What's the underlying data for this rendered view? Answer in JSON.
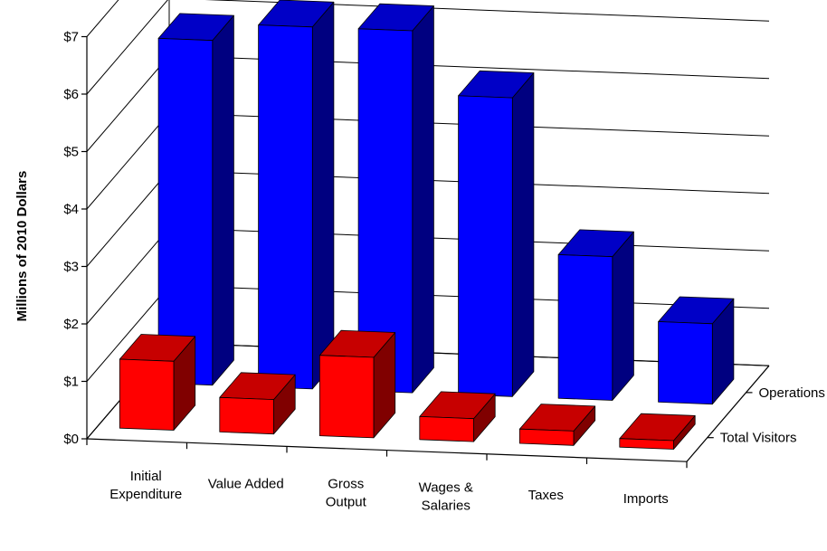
{
  "chart_data": {
    "type": "bar",
    "title": "",
    "ylabel": "Millions of 2010 Dollars",
    "xlabel": "",
    "ylim": [
      0,
      7
    ],
    "ytick_labels": [
      "$0",
      "$1",
      "$2",
      "$3",
      "$4",
      "$5",
      "$6",
      "$7"
    ],
    "categories": [
      [
        "Initial",
        "Expenditure"
      ],
      [
        "Value Added"
      ],
      [
        "Gross",
        "Output"
      ],
      [
        "Wages &",
        "Salaries"
      ],
      [
        "Taxes"
      ],
      [
        "Imports"
      ]
    ],
    "series": [
      {
        "name": "Total Visitors",
        "color": "#ff0000",
        "values": [
          1.2,
          0.6,
          1.4,
          0.4,
          0.25,
          0.15
        ]
      },
      {
        "name": "Operations",
        "color": "#0000ff",
        "values": [
          6.0,
          6.3,
          6.3,
          5.2,
          2.5,
          1.4
        ]
      }
    ],
    "grid": true,
    "three_d": true
  }
}
